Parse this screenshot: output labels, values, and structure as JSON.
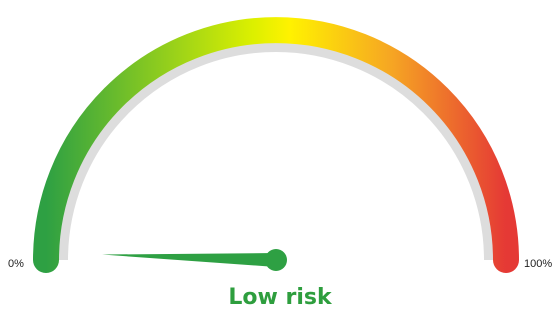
{
  "chart_data": {
    "type": "gauge",
    "value": 1,
    "min": 0,
    "max": 100,
    "min_label": "0%",
    "max_label": "100%",
    "status_text": "Low risk",
    "colors": {
      "gradient_stops": [
        "#2ea043",
        "#dcf000",
        "#fff200",
        "#f6a623",
        "#e53935"
      ],
      "track": "#dddddd",
      "needle": "#2ea043",
      "status": "#2e9e3e"
    }
  }
}
